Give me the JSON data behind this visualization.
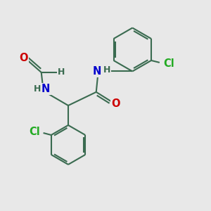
{
  "bg_color": "#e8e8e8",
  "bond_color": "#3a6b50",
  "atom_colors": {
    "O": "#cc0000",
    "N": "#0000cc",
    "Cl": "#22aa22",
    "H": "#3a6b50"
  },
  "bond_width": 1.5,
  "font_size_atom": 10.5,
  "font_size_h": 9.0
}
